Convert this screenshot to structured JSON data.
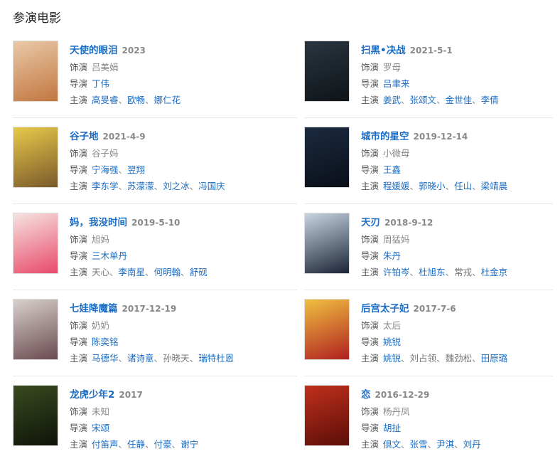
{
  "section_title": "参演电影",
  "labels": {
    "role": "饰演",
    "director": "导演",
    "cast": "主演"
  },
  "movies": [
    {
      "title": "天使的眼泪",
      "date": "2023",
      "role": "吕美娟",
      "director": [
        "丁伟"
      ],
      "cast": [
        "高旻睿",
        "欧畅",
        "娜仁花"
      ],
      "poster_colors": [
        "#e9c9a8",
        "#c2763f"
      ]
    },
    {
      "title": "扫黑•决战",
      "date": "2021-5-1",
      "role": "罗母",
      "director": [
        "吕聿来"
      ],
      "cast": [
        "姜武",
        "张颂文",
        "金世佳",
        "李倩"
      ],
      "poster_colors": [
        "#2a3540",
        "#0e1418"
      ]
    },
    {
      "title": "谷子地",
      "date": "2021-4-9",
      "role": "谷子妈",
      "director": [
        "宁海强",
        "翌翔"
      ],
      "cast": [
        "李东学",
        "苏濛濛",
        "刘之冰",
        "冯国庆"
      ],
      "poster_colors": [
        "#e8c94a",
        "#7a5a2a"
      ]
    },
    {
      "title": "城市的星空",
      "date": "2019-12-14",
      "role": "小微母",
      "director": [
        "王鑫"
      ],
      "cast": [
        "程媛媛",
        "郭晓小",
        "任山",
        "梁靖晨"
      ],
      "poster_colors": [
        "#1b2a40",
        "#0a0f18"
      ]
    },
    {
      "title": "妈，我没时间",
      "date": "2019-5-10",
      "role": "旭妈",
      "director": [
        "三木单丹"
      ],
      "cast": [
        "天心",
        "李南星",
        "何明翰",
        "舒砚"
      ],
      "poster_colors": [
        "#f6e3e0",
        "#e84a6a"
      ]
    },
    {
      "title": "天刃",
      "date": "2018-9-12",
      "role": "周猛妈",
      "director": [
        "朱丹"
      ],
      "cast": [
        "许铂岑",
        "杜旭东",
        "常戎",
        "杜金京"
      ],
      "poster_colors": [
        "#c8d4e2",
        "#1a2436"
      ]
    },
    {
      "title": "七娃降魔篇",
      "date": "2017-12-19",
      "role": "奶奶",
      "director": [
        "陈奕铭"
      ],
      "cast": [
        "马德华",
        "诸诗意",
        "孙晓天",
        "瑞特杜恩"
      ],
      "poster_colors": [
        "#d8d0cc",
        "#6a4a50"
      ]
    },
    {
      "title": "后宫太子妃",
      "date": "2017-7-6",
      "role": "太后",
      "director": [
        "姚锐"
      ],
      "cast": [
        "姚锐",
        "刘占领",
        "魏劲松",
        "田原璐"
      ],
      "poster_colors": [
        "#f0c040",
        "#b02020"
      ]
    },
    {
      "title": "龙虎少年2",
      "date": "2017",
      "role": "未知",
      "director": [
        "宋颂"
      ],
      "cast": [
        "付笛声",
        "任静",
        "付豪",
        "谢宁"
      ],
      "poster_colors": [
        "#3a4a20",
        "#0e1408"
      ]
    },
    {
      "title": "恋",
      "date": "2016-12-29",
      "role": "杨丹凤",
      "director": [
        "胡扯"
      ],
      "cast": [
        "倶文",
        "张雪",
        "尹淇",
        "刘丹"
      ],
      "poster_colors": [
        "#c0301c",
        "#5a0e08"
      ]
    }
  ]
}
